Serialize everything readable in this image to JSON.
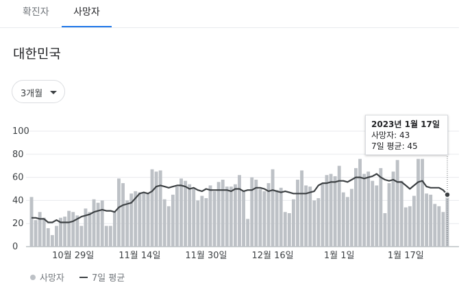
{
  "tabs": [
    {
      "label": "확진자",
      "active": false
    },
    {
      "label": "사망자",
      "active": true
    }
  ],
  "title": "대한민국",
  "range_selector": {
    "selected": "3개월"
  },
  "tooltip": {
    "date": "2023년 1월 17일",
    "line1": "사망자: 43",
    "line2": "7일 평균: 45"
  },
  "legend": {
    "bars": "사망자",
    "line": "7일 평균"
  },
  "colors": {
    "bar": "#bdc1c6",
    "line": "#3c4043",
    "accent": "#1a73e8"
  },
  "chart_data": {
    "type": "bar",
    "x_start": "2022-10-19",
    "x_end": "2023-01-17",
    "x_tick_labels": [
      "10월 29일",
      "11월 14일",
      "11월 30일",
      "12월 16일",
      "1월 1일",
      "1월 17일"
    ],
    "y_ticks": [
      0,
      20,
      40,
      60,
      80,
      100
    ],
    "ylim": [
      0,
      100
    ],
    "grid": true,
    "legend_position": "bottom",
    "series": [
      {
        "name": "사망자",
        "type": "bar",
        "values": [
          43,
          23,
          30,
          25,
          16,
          10,
          18,
          25,
          26,
          31,
          30,
          27,
          18,
          33,
          30,
          41,
          38,
          40,
          18,
          18,
          30,
          59,
          55,
          40,
          46,
          48,
          47,
          47,
          46,
          67,
          65,
          66,
          41,
          35,
          45,
          52,
          59,
          57,
          54,
          51,
          40,
          44,
          42,
          53,
          48,
          56,
          58,
          52,
          52,
          54,
          62,
          48,
          24,
          60,
          58,
          50,
          48,
          55,
          67,
          49,
          51,
          30,
          29,
          41,
          58,
          66,
          53,
          52,
          40,
          42,
          55,
          62,
          63,
          61,
          70,
          47,
          43,
          50,
          68,
          76,
          63,
          65,
          57,
          53,
          68,
          29,
          55,
          65,
          75,
          57,
          34,
          35,
          44,
          76,
          76,
          46,
          45,
          37,
          35,
          30,
          43
        ]
      },
      {
        "name": "7일 평균",
        "type": "line",
        "values": [
          25,
          25,
          24,
          24,
          21,
          21,
          23,
          21,
          21,
          21,
          22,
          24,
          26,
          27,
          28,
          30,
          31,
          32,
          31,
          31,
          30,
          34,
          36,
          37,
          38,
          42,
          46,
          47,
          46,
          48,
          52,
          53,
          52,
          51,
          52,
          53,
          53,
          52,
          50,
          51,
          49,
          48,
          50,
          49,
          49,
          49,
          49,
          49,
          48,
          50,
          50,
          48,
          49,
          49,
          51,
          51,
          50,
          48,
          49,
          48,
          47,
          48,
          47,
          46,
          46,
          46,
          46,
          47,
          48,
          53,
          55,
          55,
          56,
          56,
          57,
          57,
          56,
          58,
          60,
          60,
          59,
          60,
          61,
          63,
          60,
          58,
          57,
          58,
          56,
          56,
          53,
          50,
          53,
          56,
          57,
          52,
          51,
          51,
          51,
          49,
          45
        ]
      }
    ]
  }
}
